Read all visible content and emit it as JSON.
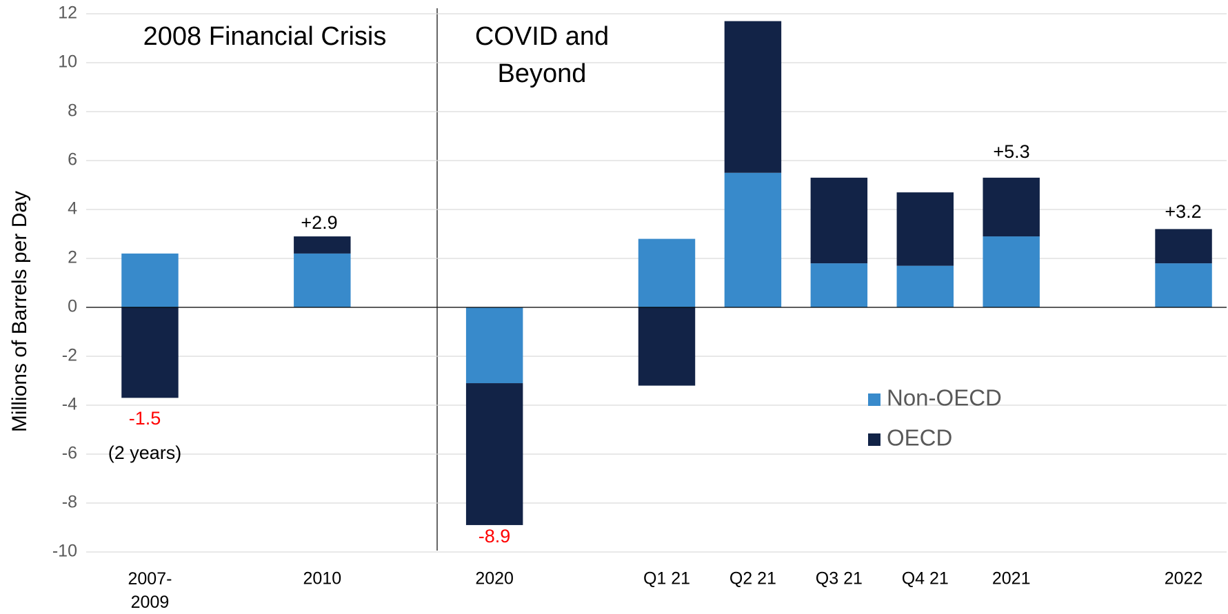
{
  "chart_data": {
    "type": "stacked_bar",
    "y_axis_label": "Millions of Barrels per Day",
    "categories": [
      "2007-\n2009",
      null,
      "2010",
      null,
      "2020",
      null,
      "Q1 21",
      "Q2 21",
      "Q3 21",
      "Q4 21",
      "2021",
      null,
      "2022"
    ],
    "series": [
      {
        "name": "Non-OECD",
        "color": "#388acb",
        "values": [
          2.2,
          null,
          2.2,
          null,
          -3.1,
          null,
          2.8,
          5.5,
          1.8,
          1.7,
          2.9,
          null,
          1.8
        ]
      },
      {
        "name": "OECD",
        "color": "#122347",
        "values": [
          -3.7,
          null,
          0.7,
          null,
          -5.8,
          null,
          -3.2,
          6.2,
          3.5,
          3.0,
          2.4,
          null,
          1.4
        ]
      }
    ],
    "ylim": [
      -10,
      12
    ],
    "yticks": [
      -10,
      -8,
      -6,
      -4,
      -2,
      0,
      2,
      4,
      6,
      8,
      10,
      12
    ],
    "grid": true,
    "sections": [
      "2008 Financial Crisis",
      "COVID and\nBeyond"
    ],
    "annotations": [
      {
        "text": "-1.5",
        "color": "#ff0000"
      },
      {
        "text": "(2 years)",
        "color": "#000000"
      },
      {
        "text": "+2.9",
        "color": "#000000"
      },
      {
        "text": "-8.9",
        "color": "#ff0000"
      },
      {
        "text": "+5.3",
        "color": "#000000"
      },
      {
        "text": "+3.2",
        "color": "#000000"
      }
    ]
  }
}
